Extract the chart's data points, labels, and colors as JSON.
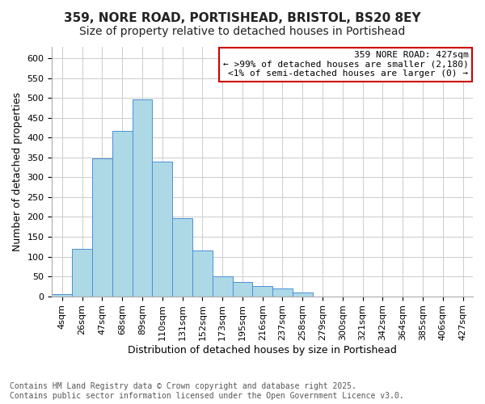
{
  "title": "359, NORE ROAD, PORTISHEAD, BRISTOL, BS20 8EY",
  "subtitle": "Size of property relative to detached houses in Portishead",
  "xlabel": "Distribution of detached houses by size in Portishead",
  "ylabel": "Number of detached properties",
  "bin_labels": [
    "4sqm",
    "26sqm",
    "47sqm",
    "68sqm",
    "89sqm",
    "110sqm",
    "131sqm",
    "152sqm",
    "173sqm",
    "195sqm",
    "216sqm",
    "237sqm",
    "258sqm",
    "279sqm",
    "300sqm",
    "321sqm",
    "342sqm",
    "364sqm",
    "385sqm",
    "406sqm",
    "427sqm"
  ],
  "bar_heights": [
    5,
    120,
    348,
    418,
    497,
    340,
    197,
    115,
    50,
    35,
    25,
    20,
    10,
    0,
    0,
    0,
    0,
    0,
    0,
    0,
    0
  ],
  "bar_color": "#add8e6",
  "bar_edge_color": "#4a90d9",
  "annotation_box_text": "359 NORE ROAD: 427sqm\n← >99% of detached houses are smaller (2,180)\n<1% of semi-detached houses are larger (0) →",
  "annotation_box_edge_color": "#cc0000",
  "ylim": [
    0,
    630
  ],
  "yticks": [
    0,
    50,
    100,
    150,
    200,
    250,
    300,
    350,
    400,
    450,
    500,
    550,
    600
  ],
  "grid_color": "#cccccc",
  "footnote": "Contains HM Land Registry data © Crown copyright and database right 2025.\nContains public sector information licensed under the Open Government Licence v3.0.",
  "bg_color": "#ffffff",
  "title_fontsize": 11,
  "subtitle_fontsize": 10,
  "axis_label_fontsize": 9,
  "tick_fontsize": 8,
  "annotation_fontsize": 8,
  "footnote_fontsize": 7
}
